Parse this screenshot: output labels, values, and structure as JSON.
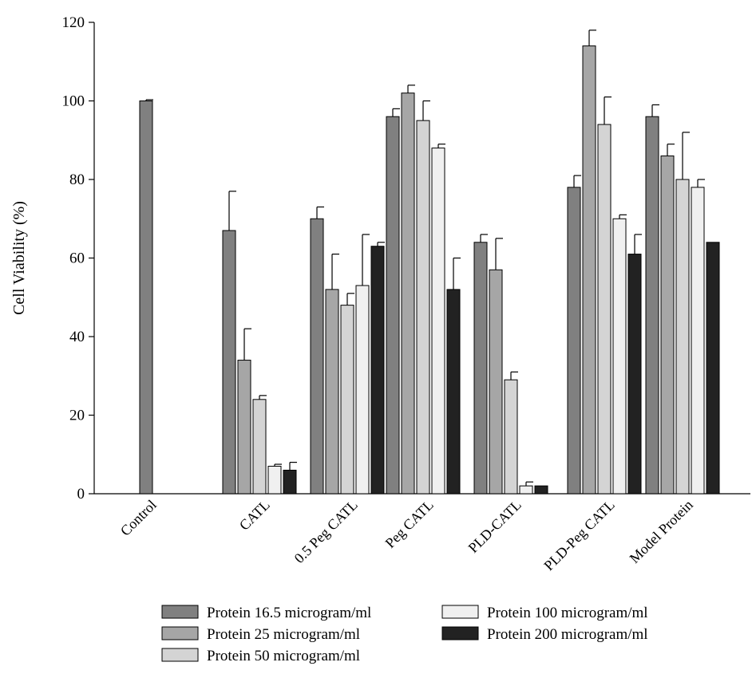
{
  "chart_data": {
    "type": "bar",
    "ylabel": "Cell Viability (%)",
    "xlabel": "",
    "ylim": [
      0,
      120
    ],
    "yticks": [
      0,
      20,
      40,
      60,
      80,
      100,
      120
    ],
    "grid": false,
    "legend_position": "bottom",
    "categories": [
      "Control",
      "CATL",
      "0.5 Peg CATL",
      "Peg CATL",
      "PLD-CATL",
      "PLD-Peg CATL",
      "Model Protein"
    ],
    "series": [
      {
        "name": "Protein 16.5 microgram/ml",
        "color": "#808080",
        "values": [
          100,
          67,
          70,
          96,
          64,
          78,
          96
        ],
        "errors": [
          0.3,
          10,
          3,
          2,
          2,
          3,
          3
        ]
      },
      {
        "name": "Protein 25 microgram/ml",
        "color": "#a6a6a6",
        "values": [
          null,
          34,
          52,
          102,
          57,
          114,
          86
        ],
        "errors": [
          null,
          8,
          9,
          2,
          8,
          4,
          3
        ]
      },
      {
        "name": "Protein 50 microgram/ml",
        "color": "#d4d4d4",
        "values": [
          null,
          24,
          48,
          95,
          29,
          94,
          80
        ],
        "errors": [
          null,
          1,
          3,
          5,
          2,
          7,
          12
        ]
      },
      {
        "name": "Protein 100 microgram/ml",
        "color": "#f0f0f0",
        "values": [
          null,
          7,
          53,
          88,
          2,
          70,
          78
        ],
        "errors": [
          null,
          0.5,
          13,
          1,
          1,
          1,
          2
        ]
      },
      {
        "name": "Protein 200 microgram/ml",
        "color": "#222222",
        "values": [
          null,
          6,
          63,
          52,
          2,
          61,
          64
        ],
        "errors": [
          null,
          2,
          1,
          8,
          0,
          5,
          0
        ]
      }
    ]
  }
}
